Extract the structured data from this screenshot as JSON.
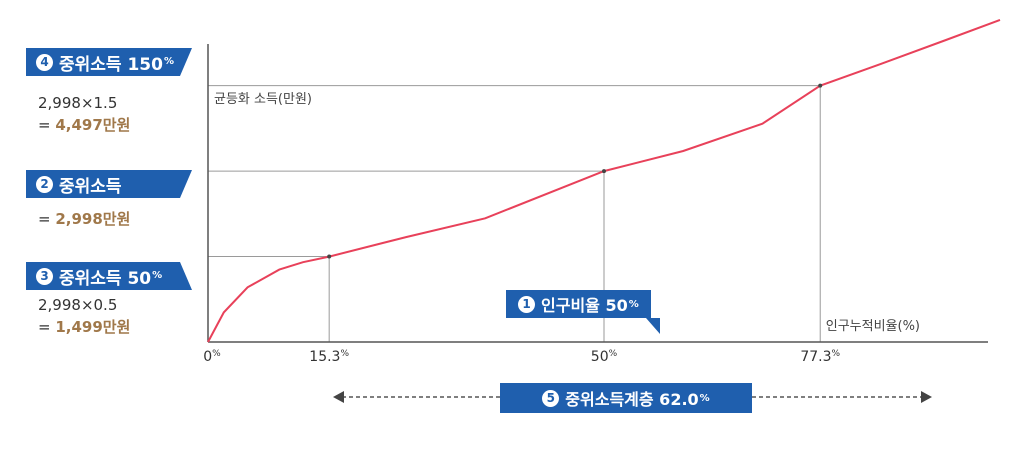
{
  "labels": {
    "l4": {
      "num": "4",
      "text": "중위소득 150",
      "pct": "%"
    },
    "l2": {
      "num": "2",
      "text": "중위소득"
    },
    "l3": {
      "num": "3",
      "text": "중위소득 50",
      "pct": "%"
    }
  },
  "calcs": {
    "c4_line1": "2,998×1.5",
    "c4_prefix": "= ",
    "c4_result": "4,497만원",
    "c2_prefix": "= ",
    "c2_result": "2,998만원",
    "c3_line1": "2,998×0.5",
    "c3_prefix": "= ",
    "c3_result": "1,499만원"
  },
  "pills": {
    "p1": {
      "num": "1",
      "text": "인구비율 50",
      "pct": "%"
    },
    "p5": {
      "num": "5",
      "text": "중위소득계층 62.0",
      "pct": "%"
    }
  },
  "colors": {
    "accent": "#1f5fae",
    "curve": "#e8415a",
    "result": "#a0784a",
    "guide": "#9a9a9a"
  },
  "chart_data": {
    "type": "line",
    "ylabel": "균등화 소득(만원)",
    "xlabel": "인구누적비율(%)",
    "x_ticks": [
      {
        "value": 0,
        "label": "0",
        "unit": "%"
      },
      {
        "value": 15.3,
        "label": "15.3",
        "unit": "%"
      },
      {
        "value": 50,
        "label": "50",
        "unit": "%"
      },
      {
        "value": 77.3,
        "label": "77.3",
        "unit": "%"
      }
    ],
    "xlim": [
      0,
      100
    ],
    "series": [
      {
        "x": [
          0,
          2,
          5,
          9,
          12,
          15.3,
          25,
          35,
          50,
          60,
          70,
          77.3,
          85,
          93,
          100
        ],
        "y": [
          0,
          520,
          960,
          1270,
          1400,
          1499,
          1840,
          2170,
          2998,
          3350,
          3830,
          4497,
          4880,
          5290,
          5650
        ]
      }
    ],
    "reference_points": [
      {
        "x": 15.3,
        "y": 1499
      },
      {
        "x": 50,
        "y": 2998
      },
      {
        "x": 77.3,
        "y": 4497
      }
    ],
    "grid": false
  }
}
